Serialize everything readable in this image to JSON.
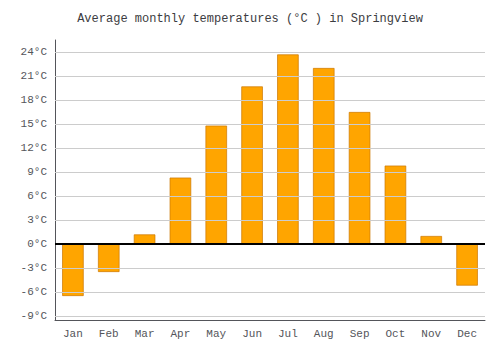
{
  "chart_data": {
    "type": "bar",
    "title": "Average monthly temperatures (°C ) in Springview",
    "categories": [
      "Jan",
      "Feb",
      "Mar",
      "Apr",
      "May",
      "Jun",
      "Jul",
      "Aug",
      "Sep",
      "Oct",
      "Nov",
      "Dec"
    ],
    "values": [
      -6.5,
      -3.5,
      1.2,
      8.3,
      14.8,
      19.7,
      23.7,
      22.0,
      16.5,
      9.8,
      1.0,
      -5.2
    ],
    "color": "#FFA500",
    "ylim": [
      -9.5,
      25.5
    ],
    "yticks": [
      {
        "value": -9,
        "label": "-9°C"
      },
      {
        "value": -6,
        "label": "-6°C"
      },
      {
        "value": -3,
        "label": "-3°C"
      },
      {
        "value": 0,
        "label": "0°C"
      },
      {
        "value": 3,
        "label": "3°C"
      },
      {
        "value": 6,
        "label": "6°C"
      },
      {
        "value": 9,
        "label": "9°C"
      },
      {
        "value": 12,
        "label": "12°C"
      },
      {
        "value": 15,
        "label": "15°C"
      },
      {
        "value": 18,
        "label": "18°C"
      },
      {
        "value": 21,
        "label": "21°C"
      },
      {
        "value": 24,
        "label": "24°C"
      }
    ],
    "grid": true
  }
}
